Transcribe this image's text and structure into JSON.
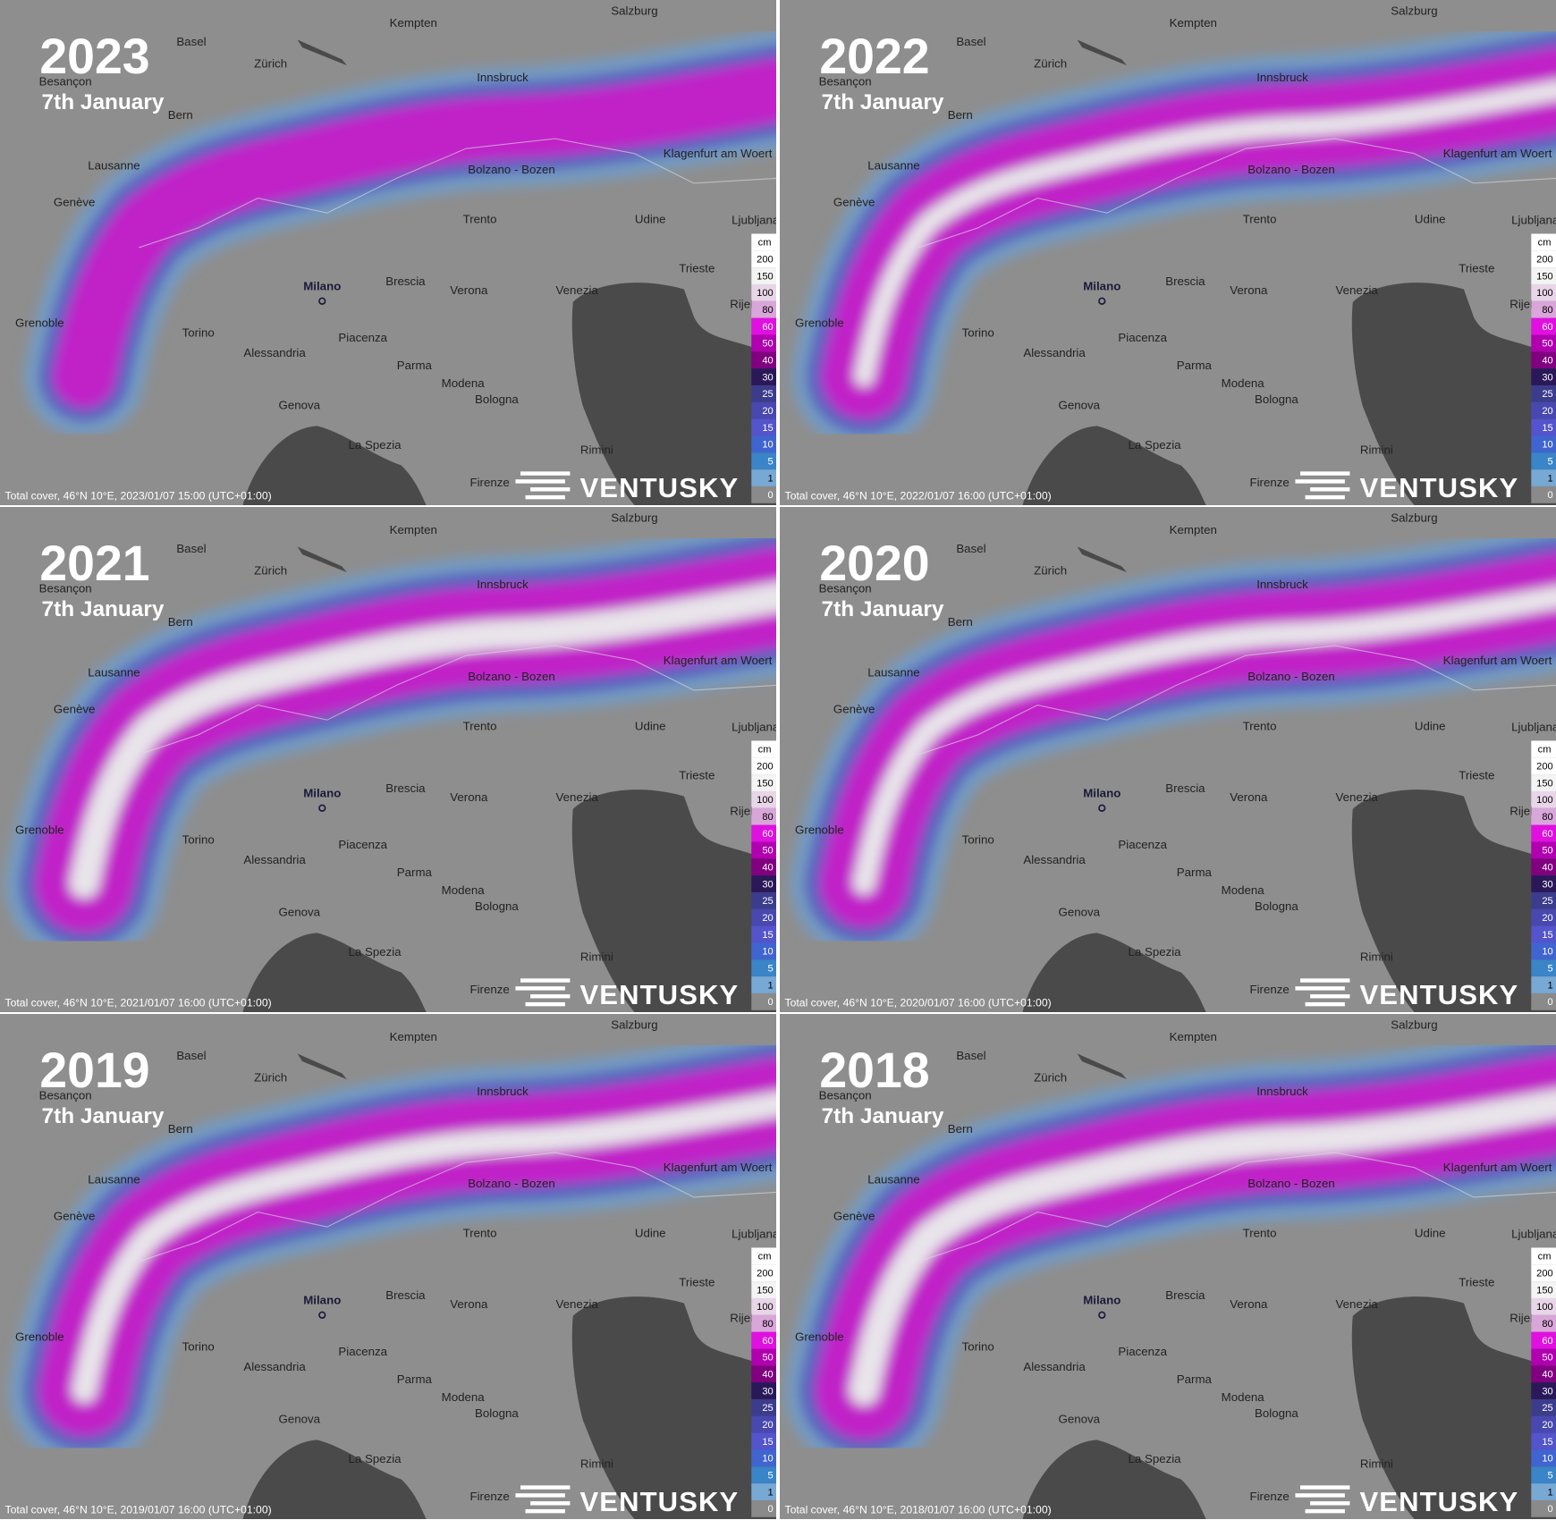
{
  "panels": [
    {
      "year": "2023",
      "date": "7th January",
      "footer": "Total cover, 46°N 10°E, 2023/01/07 15:00 (UTC+01:00)"
    },
    {
      "year": "2022",
      "date": "7th January",
      "footer": "Total cover, 46°N 10°E, 2022/01/07 16:00 (UTC+01:00)"
    },
    {
      "year": "2021",
      "date": "7th January",
      "footer": "Total cover, 46°N 10°E, 2021/01/07 16:00 (UTC+01:00)"
    },
    {
      "year": "2020",
      "date": "7th January",
      "footer": "Total cover, 46°N 10°E, 2020/01/07 16:00 (UTC+01:00)"
    },
    {
      "year": "2019",
      "date": "7th January",
      "footer": "Total cover, 46°N 10°E, 2019/01/07 16:00 (UTC+01:00)"
    },
    {
      "year": "2018",
      "date": "7th January",
      "footer": "Total cover, 46°N 10°E, 2018/01/07 16:00 (UTC+01:00)"
    }
  ],
  "cities": [
    "Kempten",
    "Salzburg",
    "Basel",
    "Besançon",
    "Zürich",
    "Innsbruck",
    "Bern",
    "Lausanne",
    "Klagenfurt am Woert",
    "Bolzano - Bozen",
    "Genève",
    "Trento",
    "Udine",
    "Ljubljana",
    "Trieste",
    "Milano",
    "Brescia",
    "Verona",
    "Venezia",
    "Rijel",
    "Grenoble",
    "Torino",
    "Alessandria",
    "Piacenza",
    "Parma",
    "Modena",
    "Bologna",
    "Genova",
    "La Spezia",
    "Rimini",
    "Firenze"
  ],
  "legend": {
    "unit": "cm",
    "labels": [
      "200",
      "150",
      "100",
      "80",
      "60",
      "50",
      "40",
      "30",
      "25",
      "20",
      "15",
      "10",
      "5",
      "1",
      "0"
    ]
  },
  "logo": "VENTUSKY"
}
